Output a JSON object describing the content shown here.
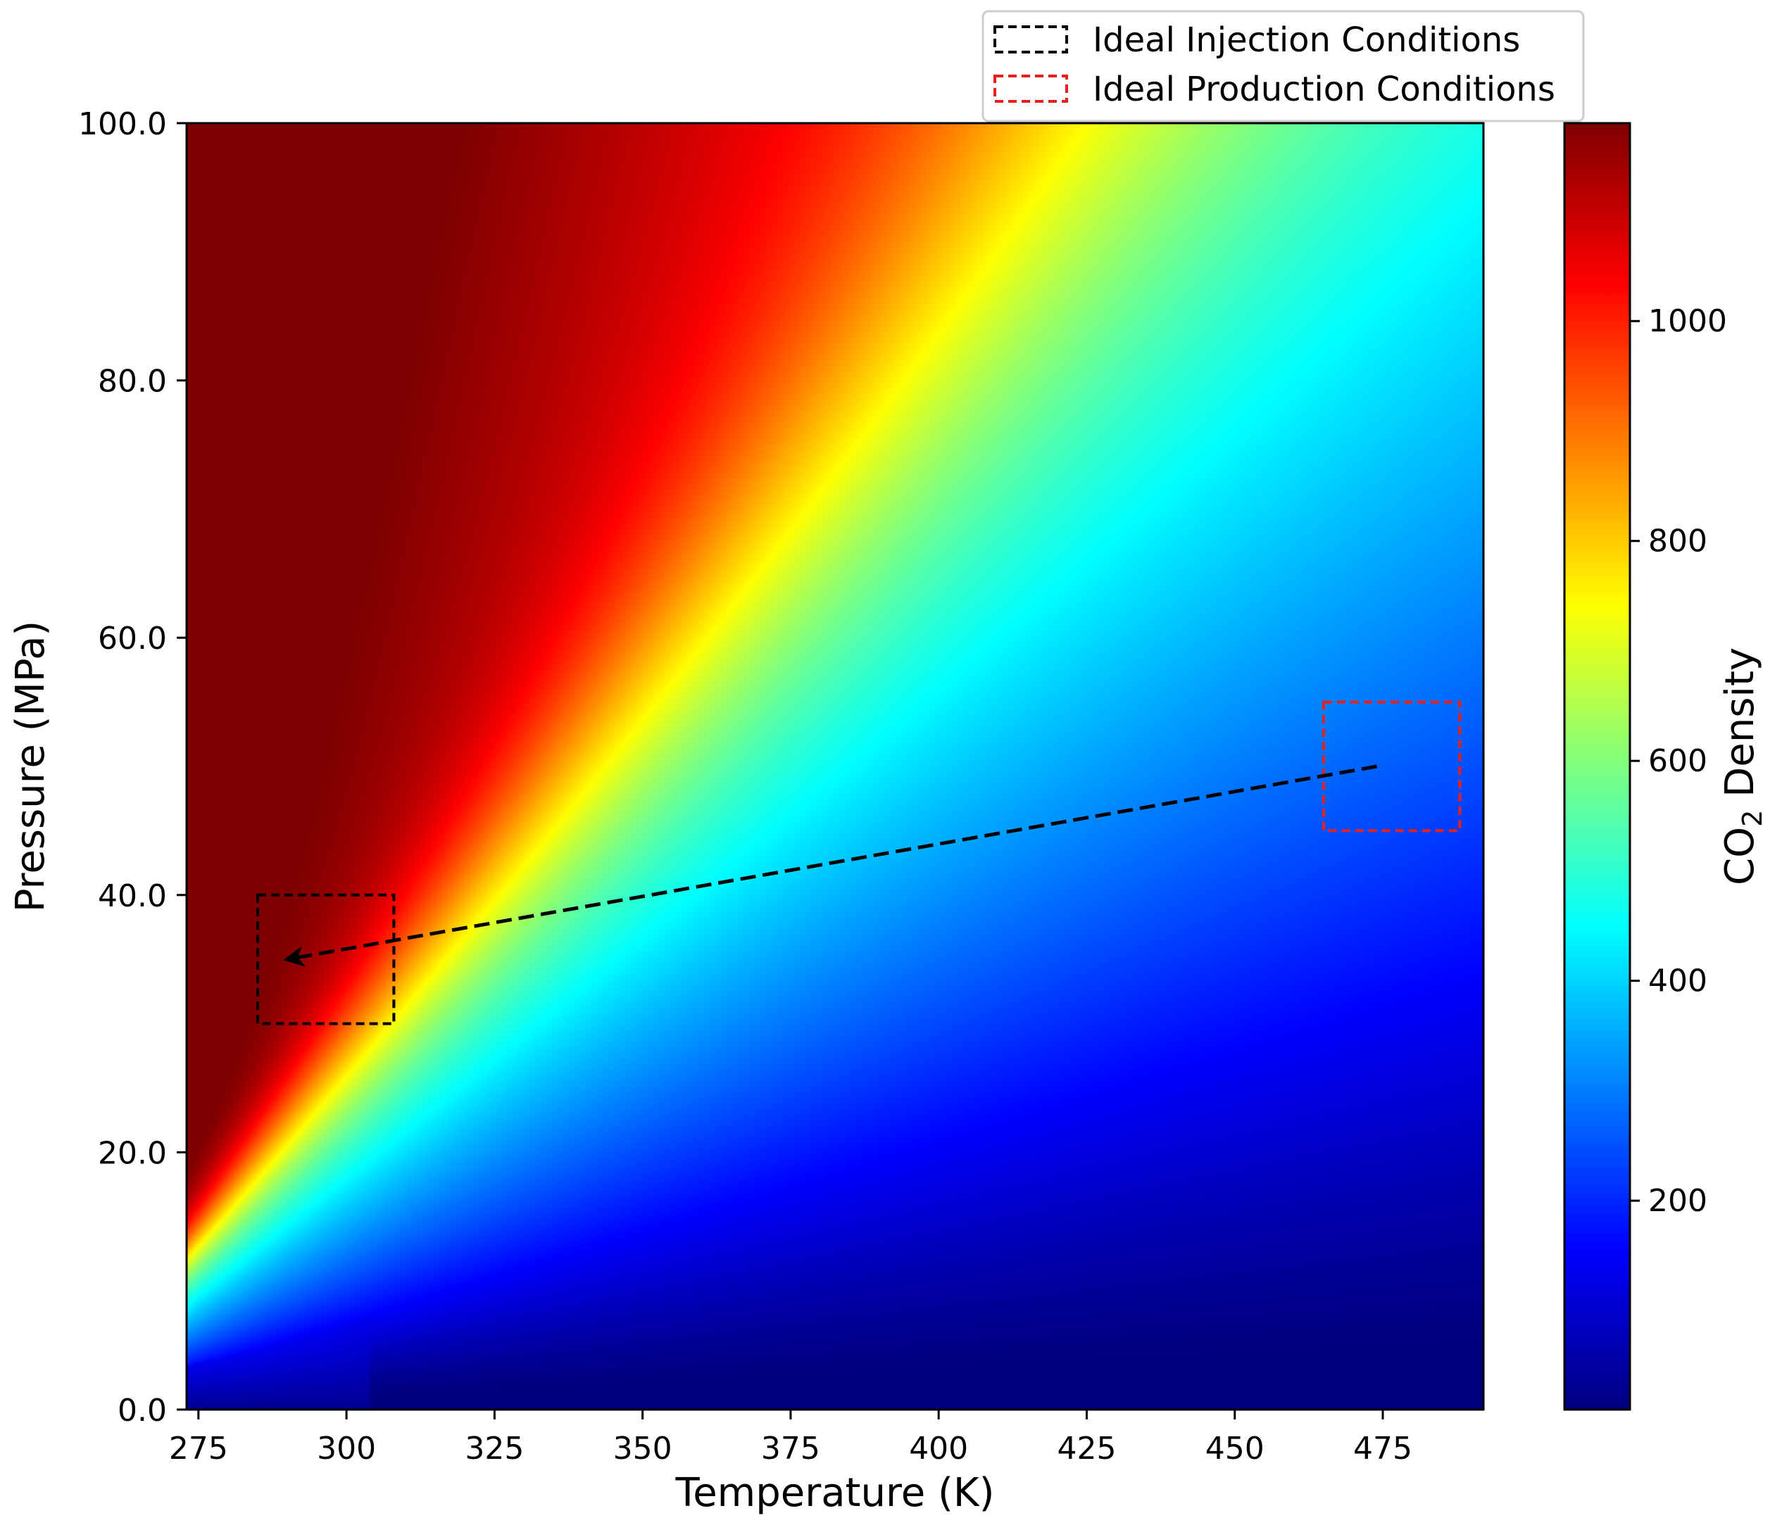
{
  "chart_data": {
    "type": "heatmap",
    "title": "",
    "xlabel": "Temperature (K)",
    "ylabel": "Pressure (MPa)",
    "xlim": [
      273,
      492
    ],
    "ylim": [
      0,
      100
    ],
    "x_ticks": [
      275,
      300,
      325,
      350,
      375,
      400,
      425,
      450,
      475
    ],
    "x_tick_labels": [
      "275",
      "300",
      "325",
      "350",
      "375",
      "400",
      "425",
      "450",
      "475"
    ],
    "y_ticks": [
      0,
      20,
      40,
      60,
      80,
      100
    ],
    "y_tick_labels": [
      "0.0",
      "20.0",
      "40.0",
      "60.0",
      "80.0",
      "100.0"
    ],
    "colorbar": {
      "label": "CO₂ Density",
      "label_main": "CO",
      "label_sub": "2",
      "label_rest": " Density",
      "range": [
        10,
        1180
      ],
      "ticks": [
        200,
        400,
        600,
        800,
        1000
      ],
      "tick_labels": [
        "200",
        "400",
        "600",
        "800",
        "1000"
      ],
      "colormap": "jet"
    },
    "colormap_stops": [
      "#00007f",
      "#0000ff",
      "#007fff",
      "#00ffff",
      "#7fff7f",
      "#ffff00",
      "#ff7f00",
      "#ff0000",
      "#7f0000"
    ],
    "legend": {
      "placement": "upper-right, outside the plot",
      "entries": [
        {
          "label": "Ideal Injection Conditions",
          "color": "#000000",
          "style": "dashed"
        },
        {
          "label": "Ideal Production Conditions",
          "color": "#e8201c",
          "style": "dashed"
        }
      ]
    },
    "regions": [
      {
        "name": "Ideal Injection Conditions",
        "x": [
          285,
          308
        ],
        "y": [
          30,
          40
        ],
        "color": "#000000"
      },
      {
        "name": "Ideal Production Conditions",
        "x": [
          465,
          488
        ],
        "y": [
          45,
          55
        ],
        "color": "#e8201c"
      }
    ],
    "arrow": {
      "from": [
        474,
        50
      ],
      "to": [
        290,
        35
      ],
      "color": "#000000",
      "style": "dashed"
    },
    "grid": false
  }
}
